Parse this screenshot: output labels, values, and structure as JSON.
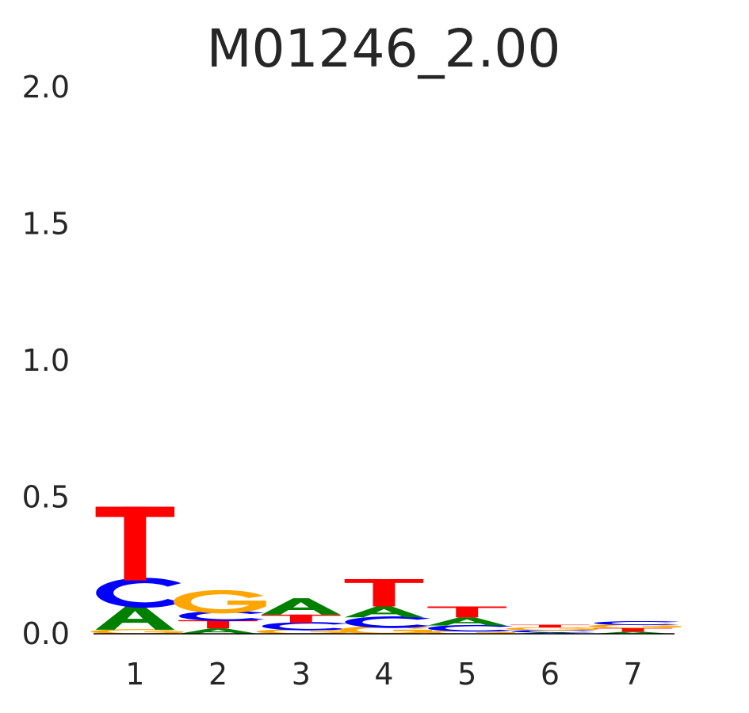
{
  "chart_data": {
    "type": "sequence-logo",
    "title": "M01246_2.00",
    "xlabel": "",
    "ylabel": "",
    "ylim": [
      0,
      2.0
    ],
    "yticks": [
      "0.0",
      "0.5",
      "1.0",
      "1.5",
      "2.0"
    ],
    "xticks": [
      "1",
      "2",
      "3",
      "4",
      "5",
      "6",
      "7"
    ],
    "grid": false,
    "legend": "none",
    "colors": {
      "A": "#008000",
      "C": "#0000ff",
      "G": "#ffa500",
      "T": "#ff0000"
    },
    "positions": [
      {
        "pos": "1",
        "letters": [
          {
            "base": "G",
            "height": 0.015
          },
          {
            "base": "A",
            "height": 0.09
          },
          {
            "base": "C",
            "height": 0.09
          },
          {
            "base": "T",
            "height": 0.27
          }
        ]
      },
      {
        "pos": "2",
        "letters": [
          {
            "base": "A",
            "height": 0.02
          },
          {
            "base": "T",
            "height": 0.03
          },
          {
            "base": "C",
            "height": 0.03
          },
          {
            "base": "G",
            "height": 0.07
          }
        ]
      },
      {
        "pos": "3",
        "letters": [
          {
            "base": "G",
            "height": 0.015
          },
          {
            "base": "C",
            "height": 0.025
          },
          {
            "base": "T",
            "height": 0.03
          },
          {
            "base": "A",
            "height": 0.06
          }
        ]
      },
      {
        "pos": "4",
        "letters": [
          {
            "base": "G",
            "height": 0.025
          },
          {
            "base": "C",
            "height": 0.035
          },
          {
            "base": "A",
            "height": 0.04
          },
          {
            "base": "T",
            "height": 0.1
          }
        ]
      },
      {
        "pos": "5",
        "letters": [
          {
            "base": "G",
            "height": 0.01
          },
          {
            "base": "C",
            "height": 0.02
          },
          {
            "base": "A",
            "height": 0.03
          },
          {
            "base": "T",
            "height": 0.04
          }
        ]
      },
      {
        "pos": "6",
        "letters": [
          {
            "base": "A",
            "height": 0.005
          },
          {
            "base": "C",
            "height": 0.008
          },
          {
            "base": "G",
            "height": 0.01
          },
          {
            "base": "T",
            "height": 0.01
          }
        ]
      },
      {
        "pos": "7",
        "letters": [
          {
            "base": "A",
            "height": 0.008
          },
          {
            "base": "T",
            "height": 0.013
          },
          {
            "base": "G",
            "height": 0.012
          },
          {
            "base": "C",
            "height": 0.012
          }
        ]
      }
    ]
  }
}
